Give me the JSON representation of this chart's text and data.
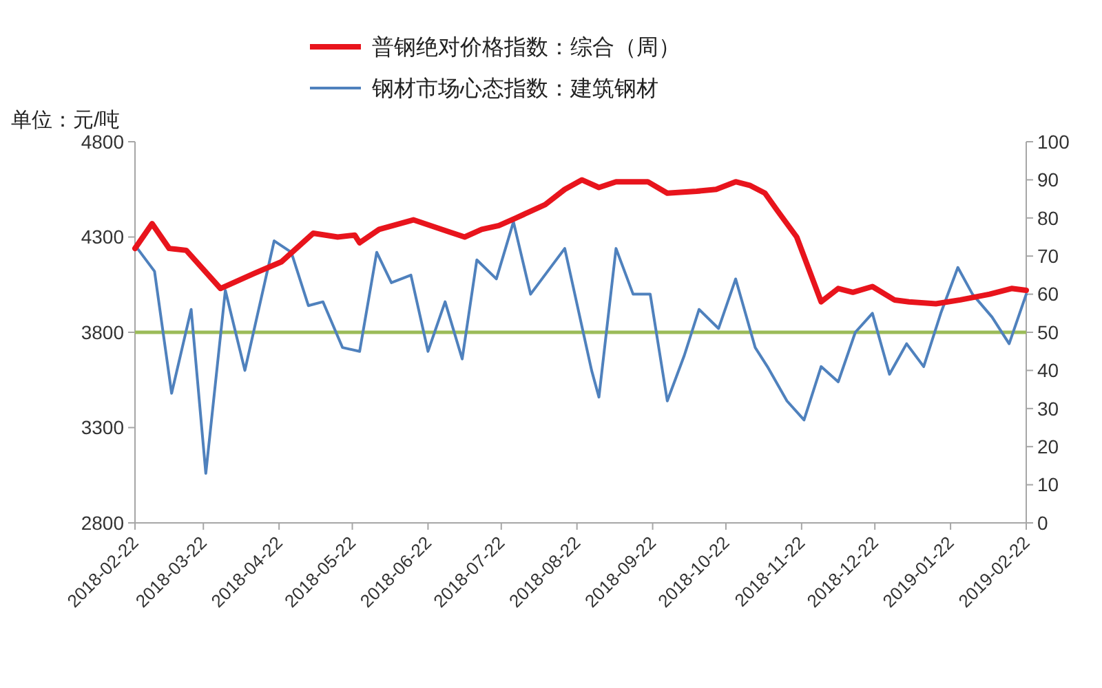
{
  "chart_data": {
    "type": "line",
    "ylabel": "单位：元/吨",
    "legend": "top",
    "grid": false,
    "xlim": [
      "2018-02-22",
      "2019-02-22"
    ],
    "xticks": [
      "2018-02-22",
      "2018-03-22",
      "2018-04-22",
      "2018-05-22",
      "2018-06-22",
      "2018-07-22",
      "2018-08-22",
      "2018-09-22",
      "2018-10-22",
      "2018-11-22",
      "2018-12-22",
      "2019-01-22",
      "2019-02-22"
    ],
    "ylim": [
      2800,
      4800
    ],
    "yticks": [
      2800,
      3300,
      3800,
      4300,
      4800
    ],
    "y2lim": [
      0,
      100
    ],
    "y2ticks": [
      0,
      10,
      20,
      30,
      40,
      50,
      60,
      70,
      80,
      90,
      100
    ],
    "ref_lines": [
      {
        "axis": "y2",
        "value": 50,
        "color": "#9bbb59"
      }
    ],
    "series": [
      {
        "name": "普钢绝对价格指数：综合（周）",
        "color": "#e8141c",
        "x": [
          "2018-02-22",
          "2018-03-01",
          "2018-03-08",
          "2018-03-15",
          "2018-03-29",
          "2018-04-12",
          "2018-04-23",
          "2018-05-06",
          "2018-05-16",
          "2018-05-23",
          "2018-05-25",
          "2018-06-02",
          "2018-06-16",
          "2018-06-30",
          "2018-07-07",
          "2018-07-14",
          "2018-07-21",
          "2018-07-28",
          "2018-08-09",
          "2018-08-17",
          "2018-08-24",
          "2018-08-31",
          "2018-09-07",
          "2018-09-20",
          "2018-09-28",
          "2018-10-10",
          "2018-10-18",
          "2018-10-26",
          "2018-11-01",
          "2018-11-07",
          "2018-11-12",
          "2018-11-20",
          "2018-11-30",
          "2018-12-07",
          "2018-12-13",
          "2018-12-21",
          "2018-12-30",
          "2019-01-05",
          "2019-01-16",
          "2019-01-26",
          "2019-02-07",
          "2019-02-16",
          "2019-02-22"
        ],
        "values": [
          4240,
          4370,
          4240,
          4230,
          4030,
          4110,
          4170,
          4320,
          4300,
          4310,
          4270,
          4340,
          4390,
          4330,
          4300,
          4340,
          4360,
          4400,
          4470,
          4550,
          4600,
          4560,
          4590,
          4590,
          4530,
          4540,
          4550,
          4590,
          4570,
          4530,
          4440,
          4300,
          3960,
          4030,
          4010,
          4040,
          3970,
          3960,
          3950,
          3970,
          4000,
          4030,
          4020
        ]
      },
      {
        "name": "钢材市场心态指数：建筑钢材",
        "color": "#4f81bd",
        "axis": "y2",
        "x": [
          "2018-02-23",
          "2018-03-02",
          "2018-03-09",
          "2018-03-17",
          "2018-03-23",
          "2018-03-31",
          "2018-04-08",
          "2018-04-20",
          "2018-04-27",
          "2018-05-04",
          "2018-05-10",
          "2018-05-18",
          "2018-05-25",
          "2018-06-01",
          "2018-06-07",
          "2018-06-15",
          "2018-06-22",
          "2018-06-29",
          "2018-07-06",
          "2018-07-12",
          "2018-07-20",
          "2018-07-27",
          "2018-08-03",
          "2018-08-17",
          "2018-08-28",
          "2018-08-31",
          "2018-09-07",
          "2018-09-14",
          "2018-09-21",
          "2018-09-28",
          "2018-10-05",
          "2018-10-11",
          "2018-10-19",
          "2018-10-26",
          "2018-11-03",
          "2018-11-08",
          "2018-11-16",
          "2018-11-23",
          "2018-11-30",
          "2018-12-07",
          "2018-12-14",
          "2018-12-21",
          "2018-12-28",
          "2019-01-04",
          "2019-01-11",
          "2019-01-18",
          "2019-01-25",
          "2019-01-31",
          "2019-02-08",
          "2019-02-15",
          "2019-02-22"
        ],
        "values": [
          72,
          66,
          34,
          56,
          13,
          61,
          40,
          74,
          71,
          57,
          58,
          46,
          45,
          71,
          63,
          65,
          45,
          58,
          43,
          69,
          64,
          79,
          60,
          72,
          40,
          33,
          72,
          60,
          60,
          32,
          44,
          56,
          51,
          64,
          46,
          41,
          32,
          27,
          41,
          37,
          50,
          55,
          39,
          47,
          41,
          55,
          67,
          60,
          54,
          47,
          60
        ]
      }
    ]
  }
}
